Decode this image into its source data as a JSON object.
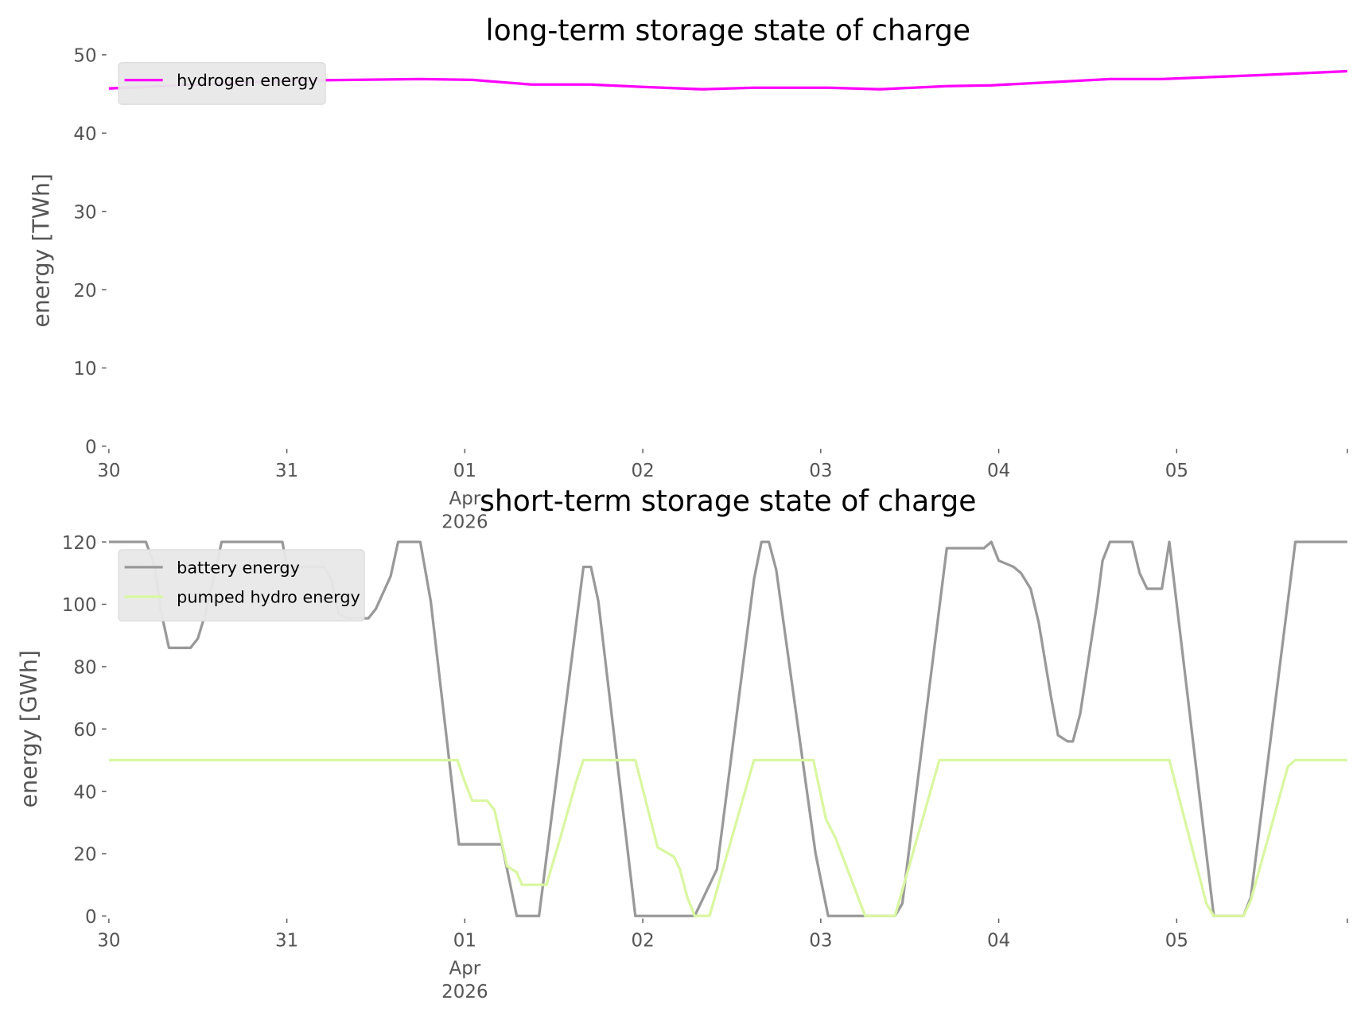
{
  "chart_data": [
    {
      "type": "line",
      "title": "long-term storage state of charge",
      "ylabel": "energy [TWh]",
      "xlabel": "",
      "x_unit": "hours since 2026-03-30 00:00",
      "xlim": [
        0,
        167
      ],
      "ylim": [
        0,
        50
      ],
      "yticks": [
        0,
        10,
        20,
        30,
        40,
        50
      ],
      "xticks": [
        {
          "h": 0,
          "label": "30"
        },
        {
          "h": 24,
          "label": "31"
        },
        {
          "h": 48,
          "label": "01",
          "sub1": "Apr",
          "sub2": "2026"
        },
        {
          "h": 72,
          "label": "02"
        },
        {
          "h": 96,
          "label": "03"
        },
        {
          "h": 120,
          "label": "04"
        },
        {
          "h": 144,
          "label": "05"
        }
      ],
      "grid": false,
      "legend": "top-left",
      "series": [
        {
          "name": "hydrogen energy",
          "color": "#ff00ff",
          "x": [
            0,
            24,
            42,
            49,
            57,
            65,
            72,
            80,
            87,
            97,
            104,
            113,
            119,
            135,
            142,
            155,
            167
          ],
          "y": [
            45.7,
            46.7,
            46.9,
            46.8,
            46.2,
            46.2,
            45.9,
            45.6,
            45.8,
            45.8,
            45.6,
            46.0,
            46.1,
            46.9,
            46.9,
            47.4,
            47.9
          ]
        }
      ]
    },
    {
      "type": "line",
      "title": "short-term storage state of charge",
      "ylabel": "energy [GWh]",
      "xlabel": "",
      "x_unit": "hours since 2026-03-30 00:00",
      "xlim": [
        0,
        167
      ],
      "ylim": [
        0,
        120
      ],
      "yticks": [
        0,
        20,
        40,
        60,
        80,
        100,
        120
      ],
      "xticks": [
        {
          "h": 0,
          "label": "30"
        },
        {
          "h": 24,
          "label": "31"
        },
        {
          "h": 48,
          "label": "01",
          "sub1": "Apr",
          "sub2": "2026"
        },
        {
          "h": 72,
          "label": "02"
        },
        {
          "h": 96,
          "label": "03"
        },
        {
          "h": 120,
          "label": "04"
        },
        {
          "h": 144,
          "label": "05"
        }
      ],
      "grid": false,
      "legend": "top-left",
      "series": [
        {
          "name": "battery energy",
          "color": "#999999",
          "x": [
            0,
            5,
            6.2,
            7,
            8.1,
            11,
            12,
            13,
            14.3,
            15.2,
            23.4,
            24,
            29,
            30,
            31,
            32.2,
            35,
            36,
            38,
            39,
            42,
            43.4,
            47.2,
            53,
            55,
            58,
            64,
            65,
            66,
            71,
            79,
            82,
            87,
            88,
            89,
            90,
            95.3,
            97,
            106,
            107,
            113,
            118,
            119,
            120,
            122,
            123,
            124.3,
            125.4,
            127,
            128,
            129.3,
            130,
            131,
            133.3,
            134,
            135,
            138,
            139,
            140,
            142,
            143,
            149,
            153,
            154,
            160,
            167
          ],
          "y": [
            120,
            120,
            112,
            98,
            86,
            86,
            89,
            97,
            110,
            120,
            120,
            112,
            112,
            108,
            97,
            95.5,
            95.5,
            98.5,
            109,
            120,
            120,
            101,
            23,
            23,
            0,
            0,
            112,
            112,
            101,
            0,
            0,
            15,
            108,
            120,
            120,
            111,
            20,
            0,
            0,
            4,
            118,
            118,
            120,
            114,
            112,
            110,
            105,
            94,
            71,
            58,
            56,
            56,
            65,
            101,
            114,
            120,
            120,
            110,
            105,
            105,
            120,
            0,
            0,
            6,
            120,
            120
          ]
        },
        {
          "name": "pumped hydro energy",
          "color": "#d9f7a1",
          "x": [
            0,
            47,
            48,
            49,
            51,
            52,
            53.7,
            55,
            55.7,
            59,
            61,
            63,
            64,
            71,
            74,
            76.2,
            77,
            78,
            79,
            81,
            87,
            95,
            96.7,
            98,
            102,
            106,
            112,
            143,
            148,
            149,
            153,
            154,
            159,
            160,
            167
          ],
          "y": [
            50,
            50,
            43,
            37,
            37,
            34,
            16,
            14,
            10,
            10,
            26,
            43,
            50,
            50,
            22,
            19,
            15,
            6,
            0,
            0,
            50,
            50,
            31,
            25,
            0,
            0,
            50,
            50,
            4,
            0,
            0,
            5,
            48,
            50,
            50
          ]
        }
      ]
    }
  ]
}
